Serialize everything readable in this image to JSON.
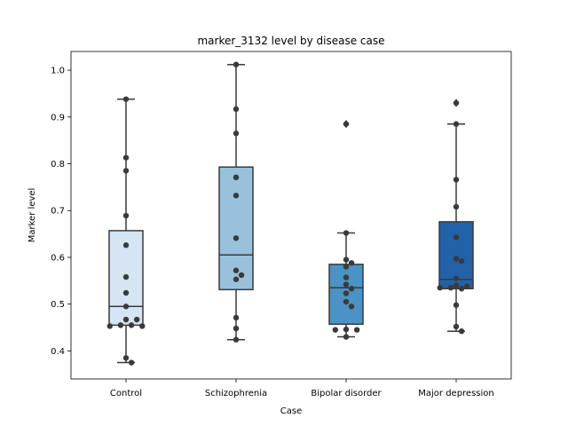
{
  "chart_data": {
    "type": "box",
    "title": "marker_3132 level by disease case",
    "xlabel": "Case",
    "ylabel": "Marker level",
    "ylim": [
      0.34,
      1.04
    ],
    "yticks": [
      0.4,
      0.5,
      0.6,
      0.7,
      0.8,
      0.9,
      1.0
    ],
    "ytick_labels": [
      "0.4",
      "0.5",
      "0.6",
      "0.7",
      "0.8",
      "0.9",
      "1.0"
    ],
    "categories": [
      "Control",
      "Schizophrenia",
      "Bipolar disorder",
      "Major depression"
    ],
    "colors": [
      "#d6e5f3",
      "#98c1dc",
      "#4b93c4",
      "#2262a8"
    ],
    "grid": false,
    "legend": "none",
    "boxes": [
      {
        "q1": 0.455,
        "median": 0.495,
        "q3": 0.657,
        "whisker_low": 0.375,
        "whisker_high": 0.938,
        "outliers": []
      },
      {
        "q1": 0.531,
        "median": 0.605,
        "q3": 0.793,
        "whisker_low": 0.424,
        "whisker_high": 1.012,
        "outliers": []
      },
      {
        "q1": 0.457,
        "median": 0.535,
        "q3": 0.585,
        "whisker_low": 0.43,
        "whisker_high": 0.652,
        "outliers": [
          0.885
        ]
      },
      {
        "q1": 0.533,
        "median": 0.553,
        "q3": 0.676,
        "whisker_low": 0.442,
        "whisker_high": 0.885,
        "outliers": [
          0.93
        ]
      }
    ],
    "points": [
      {
        "case": "Control",
        "values": [
          0.938,
          0.813,
          0.785,
          0.689,
          0.626,
          0.558,
          0.524,
          0.495,
          0.467,
          0.467,
          0.455,
          0.455,
          0.453,
          0.453,
          0.385,
          0.375
        ]
      },
      {
        "case": "Schizophrenia",
        "values": [
          1.012,
          0.917,
          0.865,
          0.771,
          0.732,
          0.641,
          0.572,
          0.562,
          0.553,
          0.471,
          0.448,
          0.424
        ]
      },
      {
        "case": "Bipolar disorder",
        "values": [
          0.885,
          0.652,
          0.595,
          0.588,
          0.58,
          0.557,
          0.542,
          0.533,
          0.523,
          0.505,
          0.495,
          0.446,
          0.445,
          0.445,
          0.43
        ]
      },
      {
        "case": "Major depression",
        "values": [
          0.93,
          0.885,
          0.766,
          0.708,
          0.643,
          0.597,
          0.592,
          0.555,
          0.54,
          0.538,
          0.535,
          0.535,
          0.533,
          0.498,
          0.452,
          0.442
        ]
      }
    ]
  }
}
